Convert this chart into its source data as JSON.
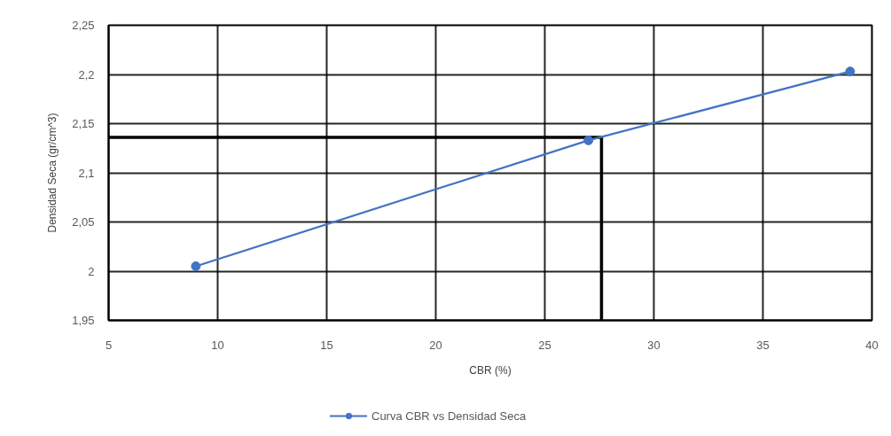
{
  "chart_data": {
    "type": "line",
    "xlabel": "CBR (%)",
    "ylabel": "Densidad Seca (gr/cm^3)",
    "x": [
      9,
      27,
      39
    ],
    "series": [
      {
        "name": "Curva CBR vs Densidad Seca",
        "color": "#4472c4",
        "values": [
          2.005,
          2.133,
          2.203
        ]
      }
    ],
    "xlim": [
      5,
      40
    ],
    "ylim": [
      1.95,
      2.25
    ],
    "xticks": [
      5,
      10,
      15,
      20,
      25,
      30,
      35,
      40
    ],
    "yticks": [
      {
        "value": 1.95,
        "label": "1,95"
      },
      2,
      {
        "value": 2.05,
        "label": "2,05"
      },
      {
        "value": 2.1,
        "label": "2,1"
      },
      {
        "value": 2.15,
        "label": "2,15"
      },
      {
        "value": 2.2,
        "label": "2,2"
      },
      {
        "value": 2.25,
        "label": "2,25"
      }
    ],
    "ref_lines": [
      {
        "axis": "y",
        "value": 2.136,
        "color": "#000000"
      },
      {
        "axis": "x",
        "value": 27.6,
        "color": "#000000"
      }
    ],
    "grid": true,
    "legend": "bottom",
    "marker": "circle",
    "line_style": "solid"
  }
}
